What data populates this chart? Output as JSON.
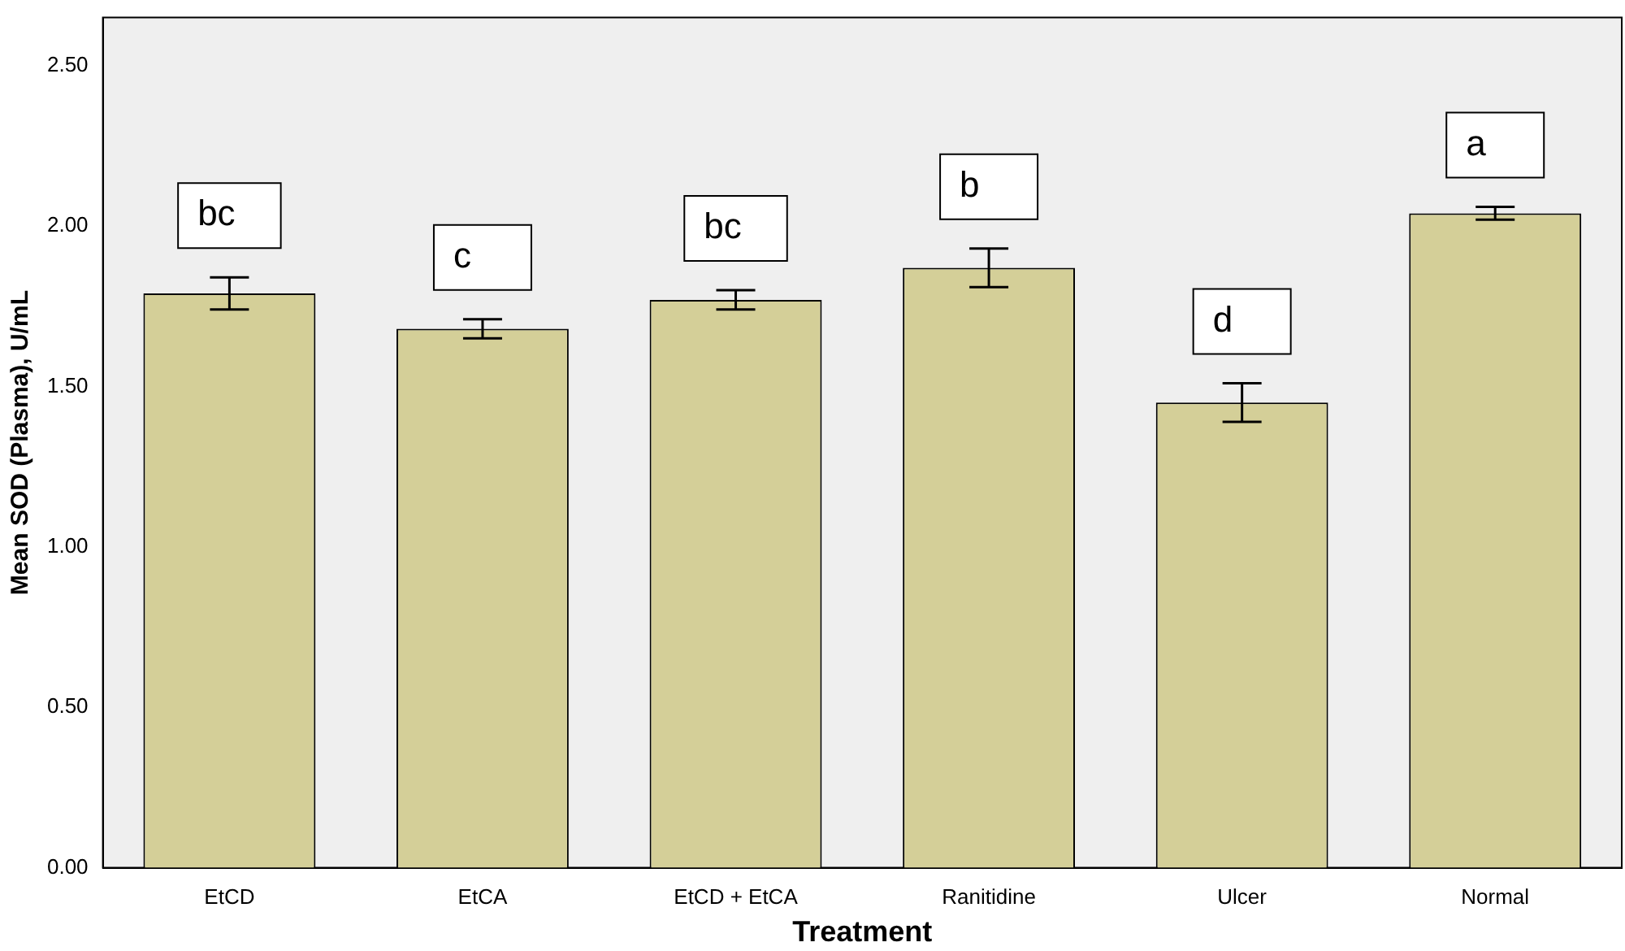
{
  "chart_data": {
    "type": "bar",
    "xlabel": "Treatment",
    "ylabel": "Mean SOD (Plasma), U/mL",
    "categories": [
      "EtCD",
      "EtCA",
      "EtCD + EtCA",
      "Ranitidine",
      "Ulcer",
      "Normal"
    ],
    "values": [
      1.79,
      1.68,
      1.77,
      1.87,
      1.45,
      2.04
    ],
    "errors": [
      0.05,
      0.03,
      0.03,
      0.06,
      0.06,
      0.02
    ],
    "color": "#d4cf98",
    "ylim": [
      0,
      2.65
    ],
    "yticks": [
      {
        "value": 0,
        "label": "0.00"
      },
      {
        "value": 0.5,
        "label": "0.50"
      },
      {
        "value": 1,
        "label": "1.00"
      },
      {
        "value": 1.5,
        "label": "1.50"
      },
      {
        "value": 2,
        "label": "2.00"
      },
      {
        "value": 2.5,
        "label": "2.50"
      }
    ],
    "grid": false,
    "legend": false,
    "annotations": [
      "bc",
      "c",
      "bc",
      "b",
      "d",
      "a"
    ]
  }
}
